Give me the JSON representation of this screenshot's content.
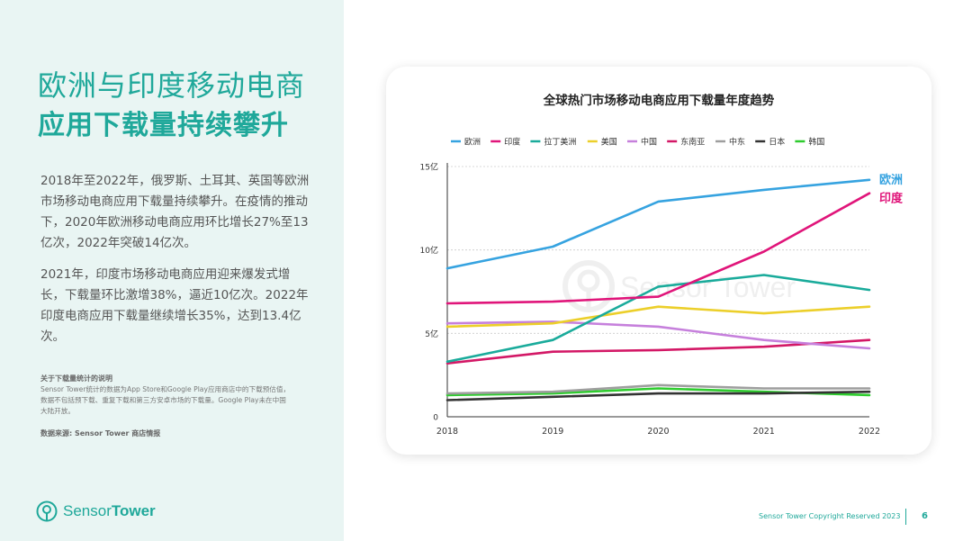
{
  "left": {
    "title_line1": "欧洲与印度移动电商",
    "title_line2": "应用下载量持续攀升",
    "para1": "2018年至2022年，俄罗斯、土耳其、英国等欧洲市场移动电商应用下载量持续攀升。在疫情的推动下，2020年欧洲移动电商应用环比增长27%至13亿次，2022年突破14亿次。",
    "para2": "2021年，印度市场移动电商应用迎来爆发式增长，下载量环比激增38%，逼近10亿次。2022年印度电商应用下载量继续增长35%，达到13.4亿次。",
    "note_title": "关于下载量统计的说明",
    "note_body": "Sensor Tower统计的数据为App Store和Google Play应用商店中的下载预估值，数据不包括预下载、重复下载和第三方安卓市场的下载量。Google Play未在中国大陆开放。",
    "source": "数据来源: Sensor Tower 商店情报"
  },
  "logo": {
    "text_light": "Sensor",
    "text_bold": "Tower"
  },
  "watermark": "Sensor Tower",
  "footer": {
    "copyright": "Sensor Tower Copyright Reserved 2023",
    "page": "6"
  },
  "chart_data": {
    "type": "line",
    "title": "全球热门市场移动电商应用下载量年度趋势",
    "x": [
      "2018",
      "2019",
      "2020",
      "2021",
      "2022"
    ],
    "y_ticks": [
      "0",
      "5亿",
      "10亿",
      "15亿"
    ],
    "y_tick_values": [
      0,
      5,
      10,
      15
    ],
    "ylim": [
      0,
      15
    ],
    "unit": "亿",
    "legend_position": "top",
    "series": [
      {
        "name": "欧洲",
        "color": "#36a3e0",
        "values": [
          8.9,
          10.2,
          12.9,
          13.6,
          14.2
        ],
        "end_label": "欧洲"
      },
      {
        "name": "印度",
        "color": "#e0157a",
        "values": [
          6.8,
          6.9,
          7.2,
          9.9,
          13.4
        ],
        "end_label": "印度"
      },
      {
        "name": "拉丁美洲",
        "color": "#1aab9b",
        "values": [
          3.3,
          4.6,
          7.8,
          8.5,
          7.6
        ]
      },
      {
        "name": "美国",
        "color": "#eccf2a",
        "values": [
          5.4,
          5.6,
          6.6,
          6.2,
          6.6
        ]
      },
      {
        "name": "中国",
        "color": "#c680dc",
        "values": [
          5.6,
          5.7,
          5.4,
          4.6,
          4.1
        ]
      },
      {
        "name": "东南亚",
        "color": "#d31866",
        "values": [
          3.2,
          3.9,
          4.0,
          4.2,
          4.6
        ]
      },
      {
        "name": "中东",
        "color": "#9e9e9e",
        "values": [
          1.4,
          1.5,
          1.9,
          1.7,
          1.7
        ]
      },
      {
        "name": "日本",
        "color": "#333333",
        "values": [
          1.0,
          1.2,
          1.4,
          1.4,
          1.5
        ]
      },
      {
        "name": "韩国",
        "color": "#2ecc2e",
        "values": [
          1.3,
          1.4,
          1.7,
          1.5,
          1.3
        ]
      }
    ]
  }
}
